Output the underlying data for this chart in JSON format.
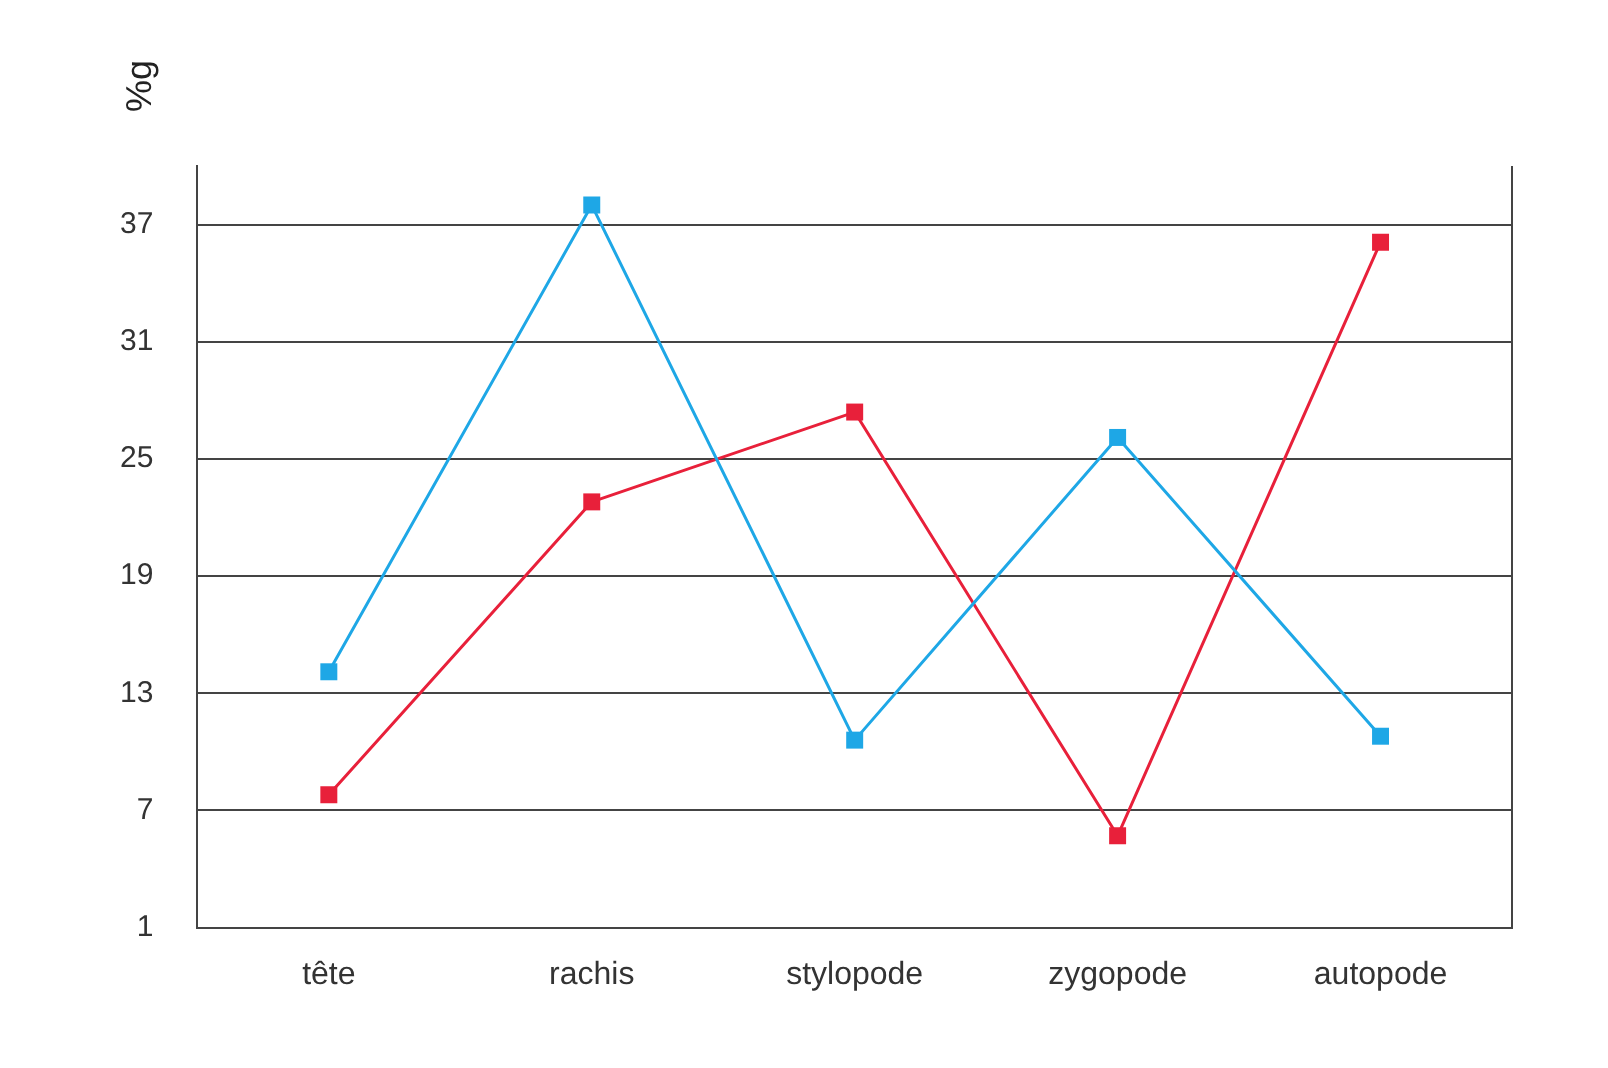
{
  "chart_data": {
    "type": "line",
    "ylabel": "%g",
    "categories": [
      "tête",
      "rachis",
      "stylopode",
      "zygopode",
      "autopode"
    ],
    "series": [
      {
        "color": "#1ea7e6",
        "values": [
          14.1,
          38,
          10.6,
          26.1,
          10.8
        ]
      },
      {
        "color": "#e8203a",
        "values": [
          7.8,
          22.8,
          27.4,
          5.7,
          36.1
        ]
      }
    ],
    "ylim": [
      1,
      40
    ],
    "yticks": [
      1,
      7,
      13,
      19,
      25,
      31,
      37
    ],
    "grid": "y",
    "legend": false,
    "marker": "square",
    "line_style": "solid"
  }
}
